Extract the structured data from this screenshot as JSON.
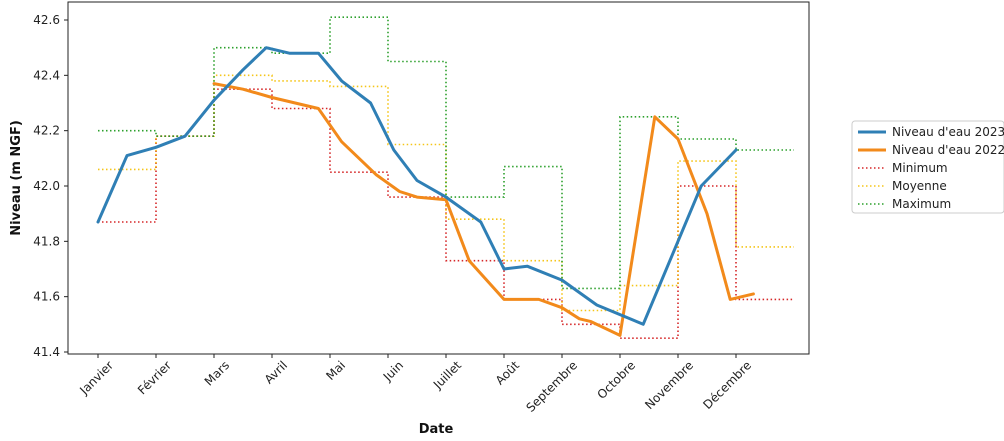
{
  "chart_data": {
    "type": "line",
    "title": "",
    "xlabel": "Date",
    "ylabel": "Niveau (m NGF)",
    "categories": [
      "Janvier",
      "Février",
      "Mars",
      "Avril",
      "Mai",
      "Juin",
      "Juillet",
      "Août",
      "Septembre",
      "Octobre",
      "Novembre",
      "Décembre"
    ],
    "yticks": [
      "41.4",
      "41.6",
      "41.8",
      "42.0",
      "42.2",
      "42.4",
      "42.6"
    ],
    "ylim": [
      41.4,
      42.65
    ],
    "grid": false,
    "legend_position": "right",
    "series": [
      {
        "name": "Niveau d'eau 2023",
        "style": "solid",
        "color": "#2f7fb5",
        "points": [
          [
            0.0,
            41.87
          ],
          [
            0.5,
            42.11
          ],
          [
            1.0,
            42.14
          ],
          [
            1.5,
            42.18
          ],
          [
            2.0,
            42.31
          ],
          [
            2.5,
            42.42
          ],
          [
            2.9,
            42.5
          ],
          [
            3.3,
            42.48
          ],
          [
            3.8,
            42.48
          ],
          [
            4.2,
            42.38
          ],
          [
            4.7,
            42.3
          ],
          [
            5.1,
            42.13
          ],
          [
            5.5,
            42.02
          ],
          [
            6.0,
            41.96
          ],
          [
            6.6,
            41.87
          ],
          [
            7.0,
            41.7
          ],
          [
            7.4,
            41.71
          ],
          [
            8.0,
            41.66
          ],
          [
            8.6,
            41.57
          ],
          [
            9.4,
            41.5
          ],
          [
            10.3,
            41.95
          ],
          [
            10.4,
            42.0
          ],
          [
            11.0,
            42.13
          ]
        ]
      },
      {
        "name": "Niveau d'eau 2022",
        "style": "solid",
        "color": "#f28a1b",
        "points": [
          [
            2.0,
            42.37
          ],
          [
            2.5,
            42.35
          ],
          [
            3.0,
            42.32
          ],
          [
            3.4,
            42.3
          ],
          [
            3.8,
            42.28
          ],
          [
            4.2,
            42.16
          ],
          [
            4.8,
            42.04
          ],
          [
            5.2,
            41.98
          ],
          [
            5.5,
            41.96
          ],
          [
            6.0,
            41.95
          ],
          [
            6.4,
            41.73
          ],
          [
            7.0,
            41.59
          ],
          [
            7.6,
            41.59
          ],
          [
            8.0,
            41.56
          ],
          [
            8.3,
            41.52
          ],
          [
            8.5,
            41.51
          ],
          [
            9.0,
            41.46
          ],
          [
            9.6,
            42.25
          ],
          [
            10.0,
            42.17
          ],
          [
            10.5,
            41.9
          ],
          [
            10.9,
            41.59
          ],
          [
            11.3,
            41.61
          ]
        ]
      },
      {
        "name": "Minimum",
        "style": "dotted",
        "color": "#d62728",
        "steps": [
          41.87,
          42.18,
          42.35,
          42.28,
          42.05,
          41.96,
          41.73,
          41.59,
          41.5,
          41.45,
          42.0,
          41.59
        ]
      },
      {
        "name": "Moyenne",
        "style": "dotted",
        "color": "#f5c518",
        "steps": [
          42.06,
          42.18,
          42.4,
          42.38,
          42.36,
          42.15,
          41.88,
          41.73,
          41.55,
          41.64,
          42.09,
          41.78
        ]
      },
      {
        "name": "Maximum",
        "style": "dotted",
        "color": "#2ca02c",
        "steps": [
          42.2,
          42.18,
          42.5,
          42.48,
          42.61,
          42.45,
          41.96,
          42.07,
          41.63,
          42.25,
          42.17,
          42.13
        ]
      }
    ]
  }
}
